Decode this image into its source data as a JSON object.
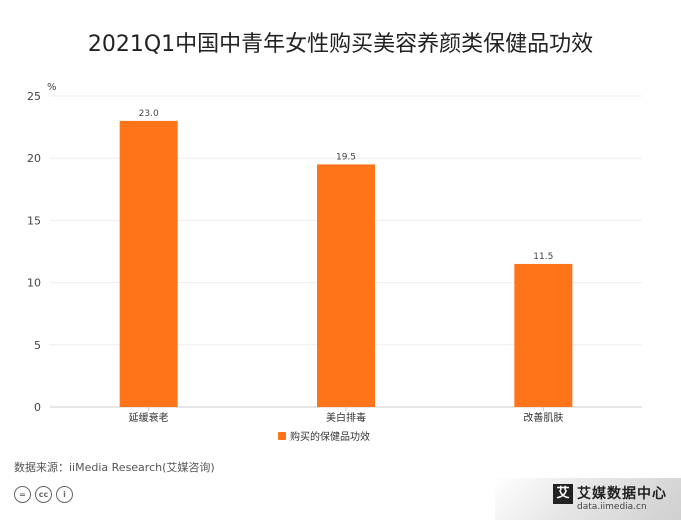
{
  "title": "2021Q1中国中青年女性购买美容养颜类保健品功效",
  "source": "数据来源：iiMedia Research(艾媒咨询)",
  "license_icons": [
    "=",
    "cc",
    "i"
  ],
  "brand": {
    "logo_char": "艾",
    "name": "艾媒数据中心",
    "url": "data.iimedia.cn"
  },
  "colors": {
    "bar": "#ff7418"
  },
  "chart_data": {
    "type": "bar",
    "title": "2021Q1中国中青年女性购买美容养颜类保健品功效",
    "ylabel": "%",
    "xlabel": "",
    "categories": [
      "延缓衰老",
      "美白排毒",
      "改善肌肤"
    ],
    "series": [
      {
        "name": "购买的保健品功效",
        "values": [
          23.0,
          19.5,
          11.5
        ]
      }
    ],
    "data_labels": [
      "23.0",
      "19.5",
      "11.5"
    ],
    "ylim": [
      0,
      25
    ],
    "yticks": [
      0,
      5,
      10,
      15,
      20,
      25
    ],
    "grid": true,
    "legend": "bottom"
  }
}
